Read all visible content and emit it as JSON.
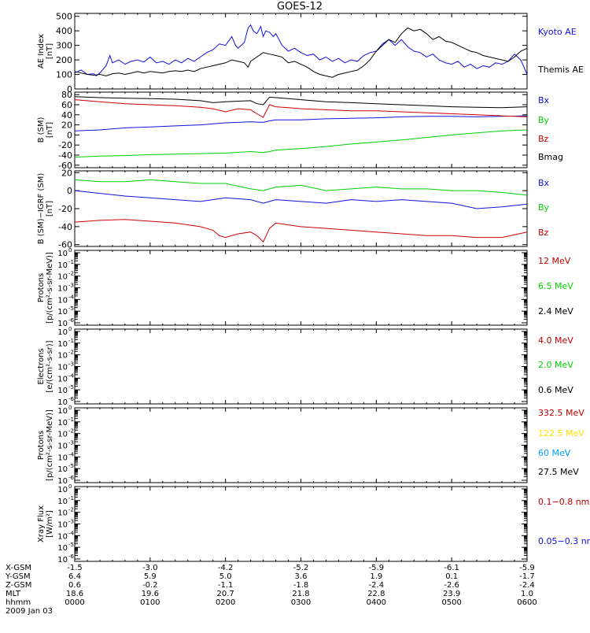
{
  "title": "GOES-12",
  "colors": {
    "black": "#000000",
    "red": "#d00000",
    "green": "#00d000",
    "blue": "#1010e0",
    "yellow": "#ffe000",
    "cyan": "#00a0ff",
    "darkred": "#c00000"
  },
  "chart_data": [
    {
      "id": "ae",
      "type": "line",
      "ylabel_lines": [
        "AE Index",
        "[nT]"
      ],
      "ylim": [
        0,
        520
      ],
      "ticks": [
        "500",
        "400",
        "300",
        "200",
        "100",
        "0"
      ],
      "tick_values": [
        500,
        400,
        300,
        200,
        100,
        0
      ],
      "series": [
        {
          "name": "Kyoto AE",
          "color": "blue",
          "x": [
            0,
            5,
            10,
            15,
            17,
            20,
            25,
            28,
            30,
            35,
            40,
            45,
            50,
            55,
            60,
            65,
            70,
            75,
            80,
            85,
            90,
            95,
            100,
            105,
            110,
            115,
            120,
            125,
            128,
            130,
            135,
            138,
            140,
            142,
            145,
            148,
            150,
            152,
            155,
            158,
            160,
            165,
            170,
            175,
            180,
            185,
            190,
            195,
            200,
            205,
            210,
            215,
            220,
            225,
            230,
            235,
            240,
            245,
            250,
            255,
            260,
            265,
            270,
            275,
            280,
            285,
            290,
            295,
            300,
            305,
            310,
            315,
            320,
            325,
            330,
            335,
            340,
            345,
            350,
            355,
            360
          ],
          "y": [
            110,
            130,
            100,
            105,
            90,
            110,
            160,
            230,
            180,
            200,
            170,
            190,
            200,
            185,
            220,
            180,
            190,
            170,
            200,
            180,
            210,
            190,
            220,
            250,
            270,
            310,
            300,
            360,
            300,
            280,
            320,
            420,
            440,
            400,
            380,
            430,
            360,
            400,
            390,
            360,
            380,
            300,
            260,
            280,
            250,
            230,
            240,
            200,
            220,
            190,
            210,
            180,
            200,
            190,
            230,
            250,
            260,
            310,
            340,
            300,
            340,
            290,
            260,
            250,
            220,
            240,
            200,
            180,
            170,
            190,
            150,
            170,
            140,
            160,
            150,
            180,
            170,
            190,
            240,
            200,
            100
          ]
        },
        {
          "name": "Themis AE",
          "color": "black",
          "x": [
            0,
            5,
            10,
            15,
            20,
            25,
            30,
            35,
            40,
            45,
            50,
            55,
            60,
            65,
            70,
            75,
            80,
            85,
            90,
            95,
            100,
            105,
            110,
            115,
            120,
            125,
            130,
            135,
            138,
            140,
            145,
            150,
            155,
            160,
            165,
            170,
            175,
            180,
            185,
            190,
            195,
            200,
            205,
            210,
            215,
            220,
            225,
            230,
            235,
            240,
            245,
            250,
            255,
            260,
            265,
            270,
            275,
            280,
            285,
            290,
            295,
            300,
            305,
            310,
            315,
            320,
            325,
            330,
            335,
            340,
            345,
            350,
            355,
            360
          ],
          "y": [
            120,
            110,
            100,
            95,
            100,
            90,
            105,
            110,
            100,
            110,
            120,
            110,
            120,
            115,
            110,
            120,
            125,
            120,
            130,
            120,
            140,
            150,
            160,
            170,
            180,
            200,
            190,
            180,
            150,
            190,
            220,
            250,
            240,
            230,
            220,
            180,
            190,
            170,
            150,
            120,
            100,
            90,
            80,
            100,
            110,
            120,
            130,
            160,
            200,
            260,
            300,
            340,
            320,
            380,
            420,
            400,
            410,
            380,
            340,
            360,
            330,
            320,
            300,
            280,
            260,
            250,
            230,
            220,
            210,
            200,
            190,
            220,
            260,
            280
          ]
        }
      ]
    },
    {
      "id": "bsm",
      "type": "line",
      "ylabel_lines": [
        "B (SM)",
        "[nT]"
      ],
      "ylim": [
        -65,
        85
      ],
      "ticks": [
        "80",
        "60",
        "40",
        "20",
        "0",
        "-20",
        "-40",
        "-60"
      ],
      "tick_values": [
        80,
        60,
        40,
        20,
        0,
        -20,
        -40,
        -60
      ],
      "series": [
        {
          "name": "Bx",
          "color": "blue",
          "x": [
            0,
            20,
            40,
            60,
            80,
            100,
            120,
            140,
            150,
            155,
            160,
            180,
            200,
            220,
            240,
            260,
            280,
            300,
            320,
            340,
            360
          ],
          "y": [
            8,
            10,
            14,
            16,
            18,
            20,
            24,
            26,
            25,
            28,
            30,
            30,
            32,
            33,
            34,
            36,
            37,
            37,
            36,
            37,
            38
          ]
        },
        {
          "name": "By",
          "color": "green",
          "x": [
            0,
            20,
            40,
            60,
            80,
            100,
            120,
            140,
            150,
            155,
            160,
            180,
            200,
            220,
            240,
            260,
            280,
            300,
            320,
            340,
            360
          ],
          "y": [
            -44,
            -42,
            -41,
            -39,
            -38,
            -37,
            -36,
            -33,
            -35,
            -33,
            -30,
            -27,
            -23,
            -18,
            -14,
            -10,
            -5,
            0,
            4,
            8,
            10
          ]
        },
        {
          "name": "Bz",
          "color": "red",
          "x": [
            0,
            20,
            40,
            60,
            80,
            100,
            110,
            120,
            130,
            140,
            145,
            150,
            155,
            160,
            170,
            180,
            200,
            220,
            240,
            260,
            280,
            300,
            320,
            340,
            360
          ],
          "y": [
            70,
            66,
            62,
            60,
            58,
            55,
            52,
            46,
            52,
            50,
            42,
            35,
            60,
            56,
            54,
            52,
            50,
            48,
            48,
            46,
            44,
            42,
            40,
            38,
            36
          ]
        },
        {
          "name": "Bmag",
          "color": "black",
          "x": [
            0,
            20,
            40,
            60,
            80,
            100,
            110,
            120,
            130,
            140,
            145,
            150,
            155,
            160,
            170,
            180,
            200,
            220,
            240,
            260,
            280,
            300,
            320,
            340,
            360
          ],
          "y": [
            76,
            74,
            73,
            72,
            71,
            68,
            64,
            66,
            67,
            68,
            62,
            60,
            75,
            74,
            72,
            70,
            66,
            64,
            62,
            60,
            58,
            56,
            55,
            54,
            56
          ]
        }
      ]
    },
    {
      "id": "bsm-igrf",
      "type": "line",
      "ylabel_lines": [
        "B (SM)−IGRF (SM)",
        "[nT]"
      ],
      "ylim": [
        -62,
        22
      ],
      "ticks": [
        "20",
        "0",
        "-20",
        "-40",
        "-60"
      ],
      "tick_values": [
        20,
        0,
        -20,
        -40,
        -60
      ],
      "series": [
        {
          "name": "Bx",
          "color": "blue",
          "x": [
            0,
            20,
            40,
            60,
            80,
            100,
            120,
            140,
            150,
            160,
            180,
            200,
            220,
            240,
            260,
            280,
            300,
            320,
            340,
            360
          ],
          "y": [
            0,
            -3,
            -6,
            -8,
            -10,
            -12,
            -8,
            -10,
            -14,
            -10,
            -12,
            -14,
            -10,
            -12,
            -10,
            -12,
            -14,
            -20,
            -18,
            -15
          ]
        },
        {
          "name": "By",
          "color": "green",
          "x": [
            0,
            20,
            40,
            60,
            80,
            100,
            120,
            140,
            150,
            160,
            180,
            200,
            220,
            240,
            260,
            280,
            300,
            320,
            340,
            360
          ],
          "y": [
            12,
            10,
            10,
            12,
            10,
            8,
            8,
            2,
            0,
            4,
            6,
            0,
            2,
            4,
            2,
            2,
            0,
            0,
            -2,
            -5
          ]
        },
        {
          "name": "Bz",
          "color": "red",
          "x": [
            0,
            20,
            40,
            60,
            80,
            100,
            110,
            115,
            120,
            130,
            140,
            145,
            150,
            155,
            160,
            170,
            180,
            200,
            220,
            240,
            260,
            280,
            300,
            320,
            340,
            360
          ],
          "y": [
            -35,
            -33,
            -32,
            -34,
            -36,
            -40,
            -44,
            -50,
            -52,
            -48,
            -46,
            -50,
            -57,
            -42,
            -36,
            -38,
            -40,
            -42,
            -44,
            -46,
            -48,
            -50,
            -50,
            -52,
            -52,
            -46
          ]
        }
      ]
    },
    {
      "id": "protons-low",
      "type": "line",
      "ylabel_lines": [
        "Protons",
        "[p/(cm²-s-sr-MeV)]"
      ],
      "log": true,
      "tick_labels": [
        [
          "10",
          "0"
        ],
        [
          "10",
          "-1"
        ],
        [
          "10",
          "-2"
        ],
        [
          "10",
          "-3"
        ],
        [
          "10",
          "-4"
        ],
        [
          "10",
          "-5"
        ],
        [
          "10",
          "-6"
        ]
      ],
      "series_labels": [
        {
          "name": "12 MeV",
          "color": "darkred"
        },
        {
          "name": "6.5 MeV",
          "color": "green"
        },
        {
          "name": "2.4 MeV",
          "color": "black"
        }
      ]
    },
    {
      "id": "electrons",
      "type": "line",
      "ylabel_lines": [
        "Electrons",
        "[e/(cm²-s-sr)]"
      ],
      "log": true,
      "tick_labels": [
        [
          "10",
          "0"
        ],
        [
          "10",
          "-1"
        ],
        [
          "10",
          "-2"
        ],
        [
          "10",
          "-3"
        ],
        [
          "10",
          "-4"
        ],
        [
          "10",
          "-5"
        ],
        [
          "10",
          "-6"
        ]
      ],
      "series_labels": [
        {
          "name": "4.0 MeV",
          "color": "darkred"
        },
        {
          "name": "2.0 MeV",
          "color": "green"
        },
        {
          "name": "0.6 MeV",
          "color": "black"
        }
      ]
    },
    {
      "id": "protons-high",
      "type": "line",
      "ylabel_lines": [
        "Protons",
        "[p/(cm²-s-sr-MeV)]"
      ],
      "log": true,
      "tick_labels": [
        [
          "10",
          "0"
        ],
        [
          "10",
          "-1"
        ],
        [
          "10",
          "-2"
        ],
        [
          "10",
          "-3"
        ],
        [
          "10",
          "-4"
        ],
        [
          "10",
          "-5"
        ],
        [
          "10",
          "-6"
        ]
      ],
      "series_labels": [
        {
          "name": "332.5 MeV",
          "color": "darkred"
        },
        {
          "name": "122.5 MeV",
          "color": "yellow"
        },
        {
          "name": "60 MeV",
          "color": "cyan"
        },
        {
          "name": "27.5 MeV",
          "color": "black"
        }
      ]
    },
    {
      "id": "xray",
      "type": "line",
      "ylabel_lines": [
        "Xray Flux",
        "[W/m²]"
      ],
      "log": true,
      "tick_labels": [
        [
          "10",
          "0"
        ],
        [
          "10",
          "-1"
        ],
        [
          "10",
          "-2"
        ],
        [
          "10",
          "-3"
        ],
        [
          "10",
          "-4"
        ],
        [
          "10",
          "-5"
        ],
        [
          "10",
          "-6"
        ]
      ],
      "series_labels": [
        {
          "name": "0.1−0.8 nm",
          "color": "darkred"
        },
        {
          "name": "0.05−0.3 nm",
          "color": "blue"
        }
      ]
    }
  ],
  "time_axis": {
    "row_labels": [
      "X-GSM",
      "Y-GSM",
      "Z-GSM",
      "MLT",
      "hhmm"
    ],
    "columns": [
      {
        "x_gsm": "-1.5",
        "y_gsm": "6.4",
        "z_gsm": "0.6",
        "mlt": "18.6",
        "hhmm": "0000"
      },
      {
        "x_gsm": "-3.0",
        "y_gsm": "5.9",
        "z_gsm": "-0.2",
        "mlt": "19.6",
        "hhmm": "0100"
      },
      {
        "x_gsm": "-4.2",
        "y_gsm": "5.0",
        "z_gsm": "-1.1",
        "mlt": "20.7",
        "hhmm": "0200"
      },
      {
        "x_gsm": "-5.2",
        "y_gsm": "3.6",
        "z_gsm": "-1.8",
        "mlt": "21.8",
        "hhmm": "0300"
      },
      {
        "x_gsm": "-5.9",
        "y_gsm": "1.9",
        "z_gsm": "-2.4",
        "mlt": "22.8",
        "hhmm": "0400"
      },
      {
        "x_gsm": "-6.1",
        "y_gsm": "0.1",
        "z_gsm": "-2.6",
        "mlt": "23.9",
        "hhmm": "0500"
      },
      {
        "x_gsm": "-5.9",
        "y_gsm": "-1.7",
        "z_gsm": "-2.4",
        "mlt": "1.0",
        "hhmm": "0600"
      }
    ],
    "date": "2009 Jan 03"
  }
}
